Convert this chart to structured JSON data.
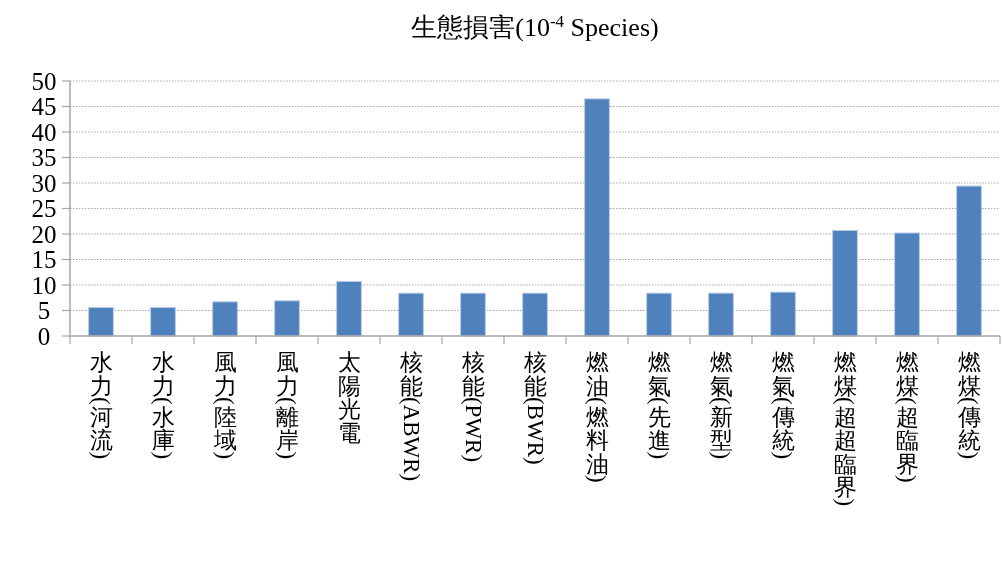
{
  "chart_data": {
    "type": "bar",
    "title": "生態損害(10$^{-4}$ Species)",
    "categories": [
      "水力(河流)",
      "水力(水庫)",
      "風力(陸域)",
      "風力(離岸)",
      "太陽光電",
      "核能(ABWR)",
      "核能(PWR)",
      "核能(BWR)",
      "燃油(燃料油)",
      "燃氣(先進)",
      "燃氣(新型)",
      "燃氣(傳統)",
      "燃煤(超超臨界)",
      "燃煤(超臨界)",
      "燃煤(傳統)"
    ],
    "values": [
      5.6,
      5.6,
      6.7,
      6.9,
      10.7,
      8.4,
      8.4,
      8.4,
      46.5,
      8.4,
      8.4,
      8.6,
      20.7,
      20.2,
      29.4
    ],
    "color": "#4f81bd",
    "ylim": [
      0,
      50
    ],
    "yticks": [
      0,
      5,
      10,
      15,
      20,
      25,
      30,
      35,
      40,
      45,
      50
    ],
    "grid": "y"
  }
}
